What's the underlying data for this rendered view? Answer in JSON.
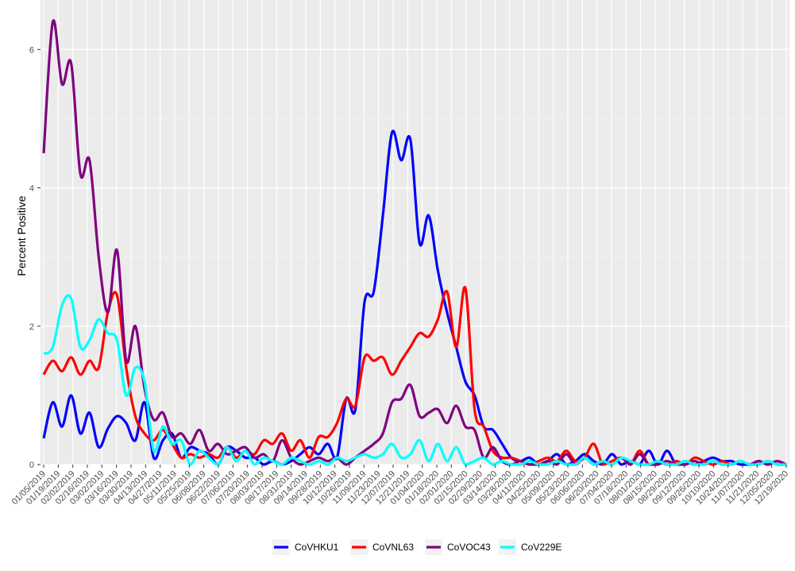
{
  "chart_data": {
    "type": "line",
    "title": "",
    "xlabel": "",
    "ylabel": "Percent Positive",
    "ylim": [
      0,
      6.6
    ],
    "y_ticks": [
      0,
      2,
      4,
      6
    ],
    "x_start_label": "01/05/2019",
    "x_tick_labels": [
      "01/05/2019",
      "01/19/2019",
      "02/02/2019",
      "02/16/2019",
      "03/02/2019",
      "03/16/2019",
      "03/30/2019",
      "04/13/2019",
      "04/27/2019",
      "05/11/2019",
      "05/25/2019",
      "06/08/2019",
      "06/22/2019",
      "07/06/2019",
      "07/20/2019",
      "08/03/2019",
      "08/17/2019",
      "08/31/2019",
      "09/14/2019",
      "09/28/2019",
      "10/12/2019",
      "10/26/2019",
      "11/09/2019",
      "11/23/2019",
      "12/07/2019",
      "12/21/2019",
      "01/04/2020",
      "01/18/2020",
      "02/01/2020",
      "02/15/2020",
      "02/29/2020",
      "03/14/2020",
      "03/28/2020",
      "04/11/2020",
      "04/25/2020",
      "05/09/2020",
      "05/23/2020",
      "06/06/2020",
      "06/20/2020",
      "07/04/2020",
      "07/18/2020",
      "08/01/2020",
      "08/15/2020",
      "08/29/2020",
      "09/12/2020",
      "09/26/2020",
      "10/10/2020",
      "10/24/2020",
      "11/07/2020",
      "11/21/2020",
      "12/05/2020",
      "12/19/2020"
    ],
    "grid": true,
    "legend_position": "bottom",
    "series": [
      {
        "name": "CoVHKU1",
        "color": "#0000ff",
        "values": [
          0.38,
          0.9,
          0.55,
          1.0,
          0.45,
          0.75,
          0.25,
          0.52,
          0.7,
          0.6,
          0.35,
          0.9,
          0.1,
          0.35,
          0.45,
          0.1,
          0.25,
          0.2,
          0.15,
          0.0,
          0.25,
          0.2,
          0.1,
          0.1,
          0.0,
          0.05,
          0.0,
          0.05,
          0.15,
          0.25,
          0.15,
          0.3,
          0.1,
          0.95,
          0.8,
          2.35,
          2.5,
          3.6,
          4.8,
          4.4,
          4.7,
          3.2,
          3.6,
          2.8,
          2.2,
          1.7,
          1.2,
          1.0,
          0.55,
          0.5,
          0.3,
          0.1,
          0.05,
          0.1,
          0.0,
          0.05,
          0.15,
          0.0,
          0.05,
          0.15,
          0.05,
          0.0,
          0.15,
          0.0,
          0.05,
          0.0,
          0.2,
          0.0,
          0.2,
          0.0,
          0.05,
          0.0,
          0.05,
          0.1,
          0.05,
          0.05,
          0.0,
          0.0,
          0.05,
          0.0,
          0.05,
          0.0
        ]
      },
      {
        "name": "CoVNL63",
        "color": "#ff0000",
        "values": [
          1.3,
          1.5,
          1.35,
          1.55,
          1.3,
          1.5,
          1.4,
          2.2,
          2.45,
          1.4,
          0.7,
          0.45,
          0.35,
          0.5,
          0.3,
          0.1,
          0.15,
          0.1,
          0.15,
          0.1,
          0.25,
          0.1,
          0.2,
          0.15,
          0.35,
          0.3,
          0.45,
          0.2,
          0.35,
          0.1,
          0.4,
          0.4,
          0.6,
          0.95,
          0.85,
          1.55,
          1.5,
          1.55,
          1.3,
          1.5,
          1.7,
          1.9,
          1.85,
          2.1,
          2.5,
          1.7,
          2.55,
          0.8,
          0.55,
          0.2,
          0.1,
          0.1,
          0.05,
          0.0,
          0.05,
          0.1,
          0.05,
          0.2,
          0.05,
          0.1,
          0.3,
          0.0,
          0.05,
          0.1,
          0.0,
          0.2,
          0.0,
          0.05,
          0.0,
          0.05,
          0.0,
          0.1,
          0.05,
          0.0,
          0.05,
          0.0,
          0.05,
          0.0,
          0.0,
          0.05,
          0.0,
          0.0
        ]
      },
      {
        "name": "CoVOC43",
        "color": "#800080",
        "values": [
          4.5,
          6.4,
          5.5,
          5.8,
          4.2,
          4.4,
          3.0,
          2.2,
          3.1,
          1.5,
          2.0,
          1.1,
          0.65,
          0.75,
          0.4,
          0.45,
          0.3,
          0.5,
          0.2,
          0.3,
          0.15,
          0.2,
          0.25,
          0.1,
          0.15,
          0.05,
          0.35,
          0.1,
          0.0,
          0.05,
          0.1,
          0.05,
          0.1,
          0.0,
          0.1,
          0.2,
          0.3,
          0.45,
          0.9,
          0.95,
          1.15,
          0.7,
          0.75,
          0.8,
          0.6,
          0.85,
          0.55,
          0.5,
          0.1,
          0.25,
          0.05,
          0.0,
          0.05,
          0.0,
          0.0,
          0.05,
          0.0,
          0.15,
          0.0,
          0.1,
          0.0,
          0.05,
          0.0,
          0.1,
          0.0,
          0.15,
          0.0,
          0.0,
          0.05,
          0.0,
          0.0,
          0.05,
          0.0,
          0.05,
          0.0,
          0.0,
          0.05,
          0.0,
          0.05,
          0.0,
          0.05,
          0.0
        ]
      },
      {
        "name": "CoV229E",
        "color": "#00ffff",
        "values": [
          1.6,
          1.7,
          2.3,
          2.4,
          1.7,
          1.8,
          2.1,
          1.9,
          1.8,
          1.0,
          1.4,
          1.2,
          0.2,
          0.55,
          0.3,
          0.35,
          0.0,
          0.2,
          0.1,
          0.0,
          0.25,
          0.05,
          0.2,
          0.0,
          0.1,
          0.05,
          0.0,
          0.1,
          0.05,
          0.0,
          0.05,
          0.0,
          0.1,
          0.05,
          0.1,
          0.15,
          0.1,
          0.15,
          0.3,
          0.1,
          0.15,
          0.35,
          0.05,
          0.3,
          0.05,
          0.25,
          0.0,
          0.05,
          0.1,
          0.0,
          0.05,
          0.0,
          0.0,
          0.05,
          0.0,
          0.0,
          0.05,
          0.0,
          0.0,
          0.1,
          0.0,
          0.05,
          0.0,
          0.1,
          0.05,
          0.0,
          0.0,
          0.05,
          0.0,
          0.0,
          0.05,
          0.0,
          0.0,
          0.05,
          0.0,
          0.0,
          0.05,
          0.0,
          0.0,
          0.05,
          0.0,
          0.0
        ]
      }
    ]
  }
}
